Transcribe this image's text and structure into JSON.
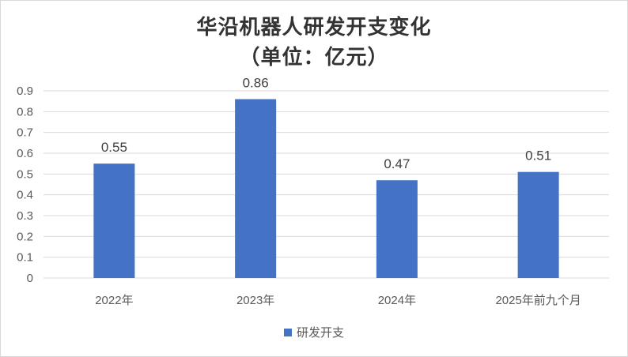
{
  "chart_data": {
    "type": "bar",
    "title_line1": "华沿机器人研发开支变化",
    "title_line2": "（单位：亿元）",
    "categories": [
      "2022年",
      "2023年",
      "2024年",
      "2025年前九个月"
    ],
    "series": [
      {
        "name": "研发开支",
        "values": [
          0.55,
          0.86,
          0.47,
          0.51
        ],
        "color": "#4472C4"
      }
    ],
    "data_labels": [
      "0.55",
      "0.86",
      "0.47",
      "0.51"
    ],
    "ylim": [
      0,
      0.9
    ],
    "yticks": [
      "0",
      "0.1",
      "0.2",
      "0.3",
      "0.4",
      "0.5",
      "0.6",
      "0.7",
      "0.8",
      "0.9"
    ],
    "grid": true,
    "legend_position": "bottom"
  }
}
